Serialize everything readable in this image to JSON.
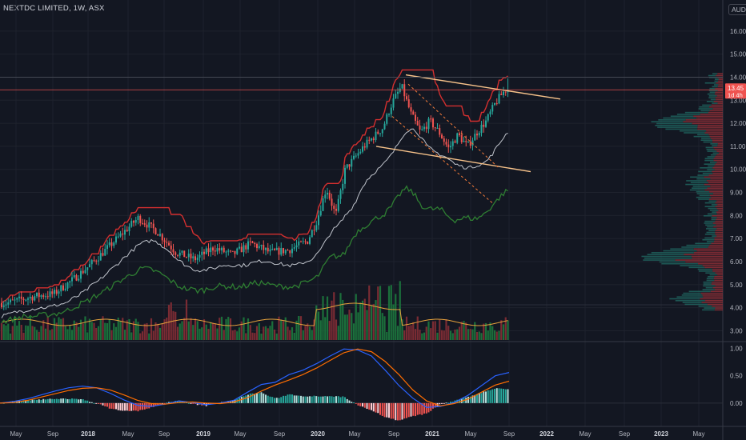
{
  "header": {
    "title": "NEXTDC LIMITED, 1W, ASX",
    "currency": "AUD"
  },
  "price_badge": {
    "price": "13.45",
    "countdown": "1d 4h"
  },
  "colors": {
    "background": "#131722",
    "grid": "#1e222d",
    "up": "#26a69a",
    "down": "#ef5350",
    "trendline": "#f7c28a",
    "channel": "#f57c3a",
    "ma_red": "#d32f2f",
    "ma_green": "#2e7d32",
    "ma_white": "#c0c4cc",
    "vol_ma": "#e6a23c",
    "macd": "#2962ff",
    "signal": "#ff6d00"
  },
  "chart_data": [
    {
      "type": "candlestick",
      "title": "NEXTDC LIMITED, 1W, ASX",
      "x_tick_labels": [
        "May",
        "Sep",
        "2018",
        "May",
        "Sep",
        "2019",
        "May",
        "Sep",
        "2020",
        "May",
        "Sep",
        "2021",
        "May",
        "Sep",
        "2022",
        "May",
        "Sep",
        "2023",
        "May"
      ],
      "y_tick_labels": [
        "16.00",
        "15.00",
        "14.00",
        "13.00",
        "12.00",
        "11.00",
        "10.00",
        "9.00",
        "8.00",
        "7.00",
        "6.00",
        "5.00",
        "4.00",
        "3.00"
      ],
      "ylim": [
        2.6,
        17.0
      ],
      "last_price": 13.45,
      "close_series": [
        {
          "x": "2017-04",
          "y": 4.2
        },
        {
          "x": "2017-07",
          "y": 4.5
        },
        {
          "x": "2017-09",
          "y": 4.6
        },
        {
          "x": "2017-11",
          "y": 5.2
        },
        {
          "x": "2018-01",
          "y": 5.9
        },
        {
          "x": "2018-03",
          "y": 6.7
        },
        {
          "x": "2018-05",
          "y": 7.5
        },
        {
          "x": "2018-06",
          "y": 7.9
        },
        {
          "x": "2018-08",
          "y": 7.3
        },
        {
          "x": "2018-10",
          "y": 6.4
        },
        {
          "x": "2018-12",
          "y": 6.1
        },
        {
          "x": "2019-02",
          "y": 6.6
        },
        {
          "x": "2019-04",
          "y": 6.3
        },
        {
          "x": "2019-06",
          "y": 6.8
        },
        {
          "x": "2019-08",
          "y": 6.4
        },
        {
          "x": "2019-10",
          "y": 6.5
        },
        {
          "x": "2019-12",
          "y": 6.9
        },
        {
          "x": "2020-01",
          "y": 7.8
        },
        {
          "x": "2020-02",
          "y": 9.2
        },
        {
          "x": "2020-03",
          "y": 8.0
        },
        {
          "x": "2020-04",
          "y": 10.0
        },
        {
          "x": "2020-06",
          "y": 11.0
        },
        {
          "x": "2020-08",
          "y": 11.8
        },
        {
          "x": "2020-09",
          "y": 12.9
        },
        {
          "x": "2020-10",
          "y": 13.6
        },
        {
          "x": "2020-11",
          "y": 12.4
        },
        {
          "x": "2020-12",
          "y": 11.6
        },
        {
          "x": "2021-01",
          "y": 12.1
        },
        {
          "x": "2021-02",
          "y": 11.6
        },
        {
          "x": "2021-03",
          "y": 10.9
        },
        {
          "x": "2021-04",
          "y": 11.5
        },
        {
          "x": "2021-05",
          "y": 11.0
        },
        {
          "x": "2021-06",
          "y": 11.6
        },
        {
          "x": "2021-07",
          "y": 12.1
        },
        {
          "x": "2021-08",
          "y": 12.9
        },
        {
          "x": "2021-09",
          "y": 13.45
        }
      ],
      "annotations": [
        "descending channel (dashed)",
        "horizontal price line at 13.45",
        "upper and lower trendlines",
        "volume profile on right"
      ]
    },
    {
      "type": "line",
      "series": [
        {
          "name": "",
          "y_values": [
            0.0,
            0.03,
            0.08,
            0.15,
            0.22,
            0.28,
            0.31,
            0.28,
            0.18,
            0.06,
            -0.04,
            -0.06,
            -0.02,
            0.04,
            0.01,
            -0.03,
            0.0,
            0.05,
            0.2,
            0.34,
            0.38,
            0.52,
            0.6,
            0.72,
            0.86,
            0.99,
            0.97,
            0.86,
            0.6,
            0.32,
            0.09,
            -0.08,
            -0.06,
            0.01,
            0.14,
            0.32,
            0.5,
            0.56
          ]
        },
        {
          "name": "",
          "y_values": [
            0.0,
            0.01,
            0.05,
            0.11,
            0.17,
            0.23,
            0.27,
            0.28,
            0.24,
            0.15,
            0.05,
            -0.01,
            -0.02,
            0.01,
            0.02,
            0.0,
            -0.01,
            0.02,
            0.1,
            0.22,
            0.33,
            0.42,
            0.52,
            0.64,
            0.78,
            0.92,
            0.99,
            0.94,
            0.76,
            0.52,
            0.24,
            0.04,
            -0.05,
            -0.01,
            0.07,
            0.2,
            0.33,
            0.4
          ]
        }
      ],
      "y_tick_labels": [
        "1.00",
        "0.50",
        "0.00"
      ],
      "ylim": [
        -0.28,
        1.08
      ]
    }
  ]
}
